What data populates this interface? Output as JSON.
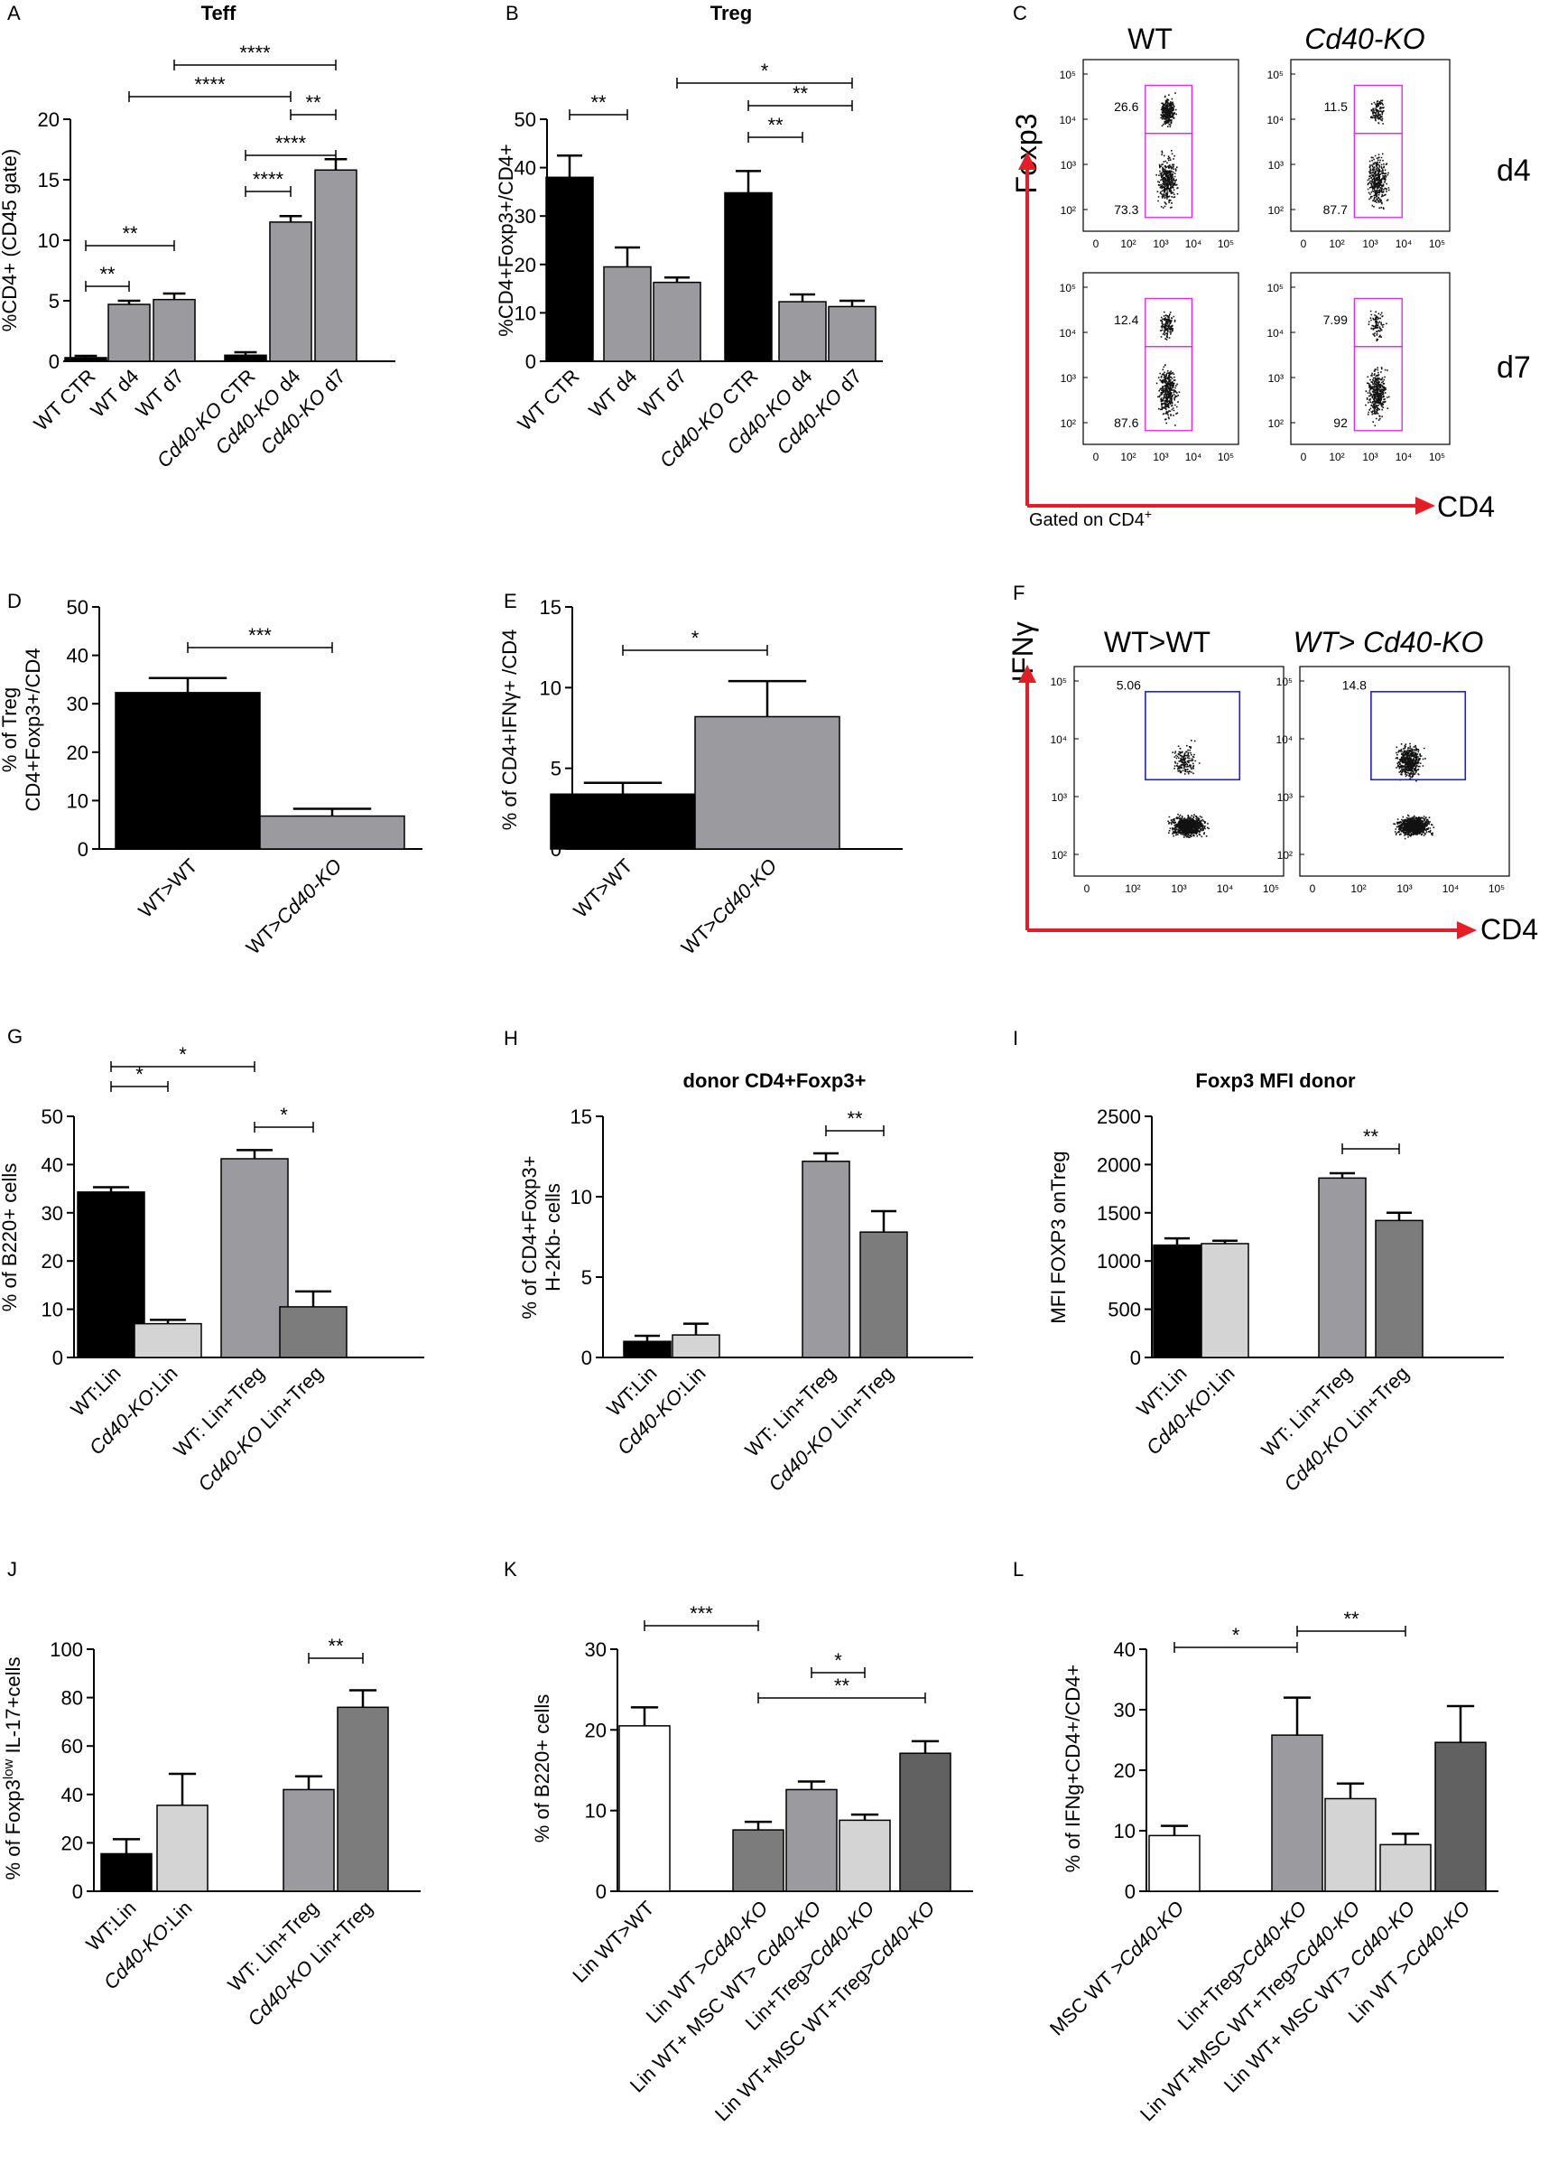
{
  "colors": {
    "black": "#000000",
    "mid": "#9a9a9f",
    "light": "#d4d4d4",
    "dark": "#7c7c7c",
    "darker": "#616161",
    "white": "#ffffff",
    "gate_magenta": "#e02ce8",
    "gate_blue": "#1c1ce8",
    "arrow_red": "#e21e26"
  },
  "chart_data": [
    {
      "id": "A",
      "type": "bar",
      "label": "A",
      "title": "Teff",
      "ylabel": "%CD4+ (CD45 gate)",
      "ylim": [
        0,
        20
      ],
      "yticks": [
        0,
        5,
        10,
        15,
        20
      ],
      "categories": [
        "WT CTR",
        "WT d4",
        "WT d7",
        "Cd40-KO CTR",
        "Cd40-KO d4",
        "Cd40-KO d7"
      ],
      "values": [
        0.3,
        4.7,
        5.1,
        0.5,
        11.5,
        15.8
      ],
      "errors": [
        0.15,
        0.3,
        0.5,
        0.25,
        0.5,
        0.9
      ],
      "colors": [
        "black",
        "mid",
        "mid",
        "black",
        "mid",
        "mid"
      ],
      "sig": [
        {
          "a": 0,
          "b": 1,
          "text": "**"
        },
        {
          "a": 0,
          "b": 2,
          "text": "**"
        },
        {
          "a": 3,
          "b": 4,
          "text": "****"
        },
        {
          "a": 3,
          "b": 5,
          "text": "****"
        },
        {
          "a": 4,
          "b": 5,
          "text": "**"
        },
        {
          "a": 1,
          "b": 4,
          "text": "****"
        },
        {
          "a": 2,
          "b": 5,
          "text": "****"
        }
      ]
    },
    {
      "id": "B",
      "type": "bar",
      "label": "B",
      "title": "Treg",
      "ylabel": "%CD4+Foxp3+/CD4+",
      "ylim": [
        0,
        50
      ],
      "yticks": [
        0,
        10,
        20,
        30,
        40,
        50
      ],
      "categories": [
        "WT CTR",
        "WT d4",
        "WT d7",
        "Cd40-KO CTR",
        "Cd40-KO d4",
        "Cd40-KO d7"
      ],
      "values": [
        38,
        19.5,
        16.3,
        34.8,
        12.3,
        11.3
      ],
      "errors": [
        4.5,
        4,
        1,
        4.5,
        1.5,
        1.2
      ],
      "colors": [
        "black",
        "mid",
        "mid",
        "black",
        "mid",
        "mid"
      ],
      "sig": [
        {
          "a": 0,
          "b": 1,
          "text": "**"
        },
        {
          "a": 3,
          "b": 4,
          "text": "**"
        },
        {
          "a": 3,
          "b": 5,
          "text": "**"
        },
        {
          "a": 2,
          "b": 5,
          "text": "*"
        }
      ]
    },
    {
      "id": "D",
      "type": "bar",
      "label": "D",
      "title": "",
      "ylabel": "% of Treg\nCD4+Foxp3+/CD4",
      "ylim": [
        0,
        50
      ],
      "yticks": [
        0,
        10,
        20,
        30,
        40,
        50
      ],
      "categories": [
        "WT>WT",
        "WT>Cd40-KO"
      ],
      "values": [
        32.3,
        6.8
      ],
      "errors": [
        3,
        1.5
      ],
      "colors": [
        "black",
        "mid"
      ],
      "sig": [
        {
          "a": 0,
          "b": 1,
          "text": "***"
        }
      ]
    },
    {
      "id": "E",
      "type": "bar",
      "label": "E",
      "title": "",
      "ylabel": "% of CD4+IFNγ+ /CD4",
      "ylim": [
        0,
        15
      ],
      "yticks": [
        0,
        5,
        10,
        15
      ],
      "categories": [
        "WT>WT",
        "WT>Cd40-KO"
      ],
      "values": [
        3.4,
        8.2
      ],
      "errors": [
        0.7,
        2.2
      ],
      "colors": [
        "black",
        "mid"
      ],
      "sig": [
        {
          "a": 0,
          "b": 1,
          "text": "*"
        }
      ]
    },
    {
      "id": "G",
      "type": "bar",
      "label": "G",
      "title": "",
      "ylabel": "% of B220+ cells",
      "ylim": [
        0,
        50
      ],
      "yticks": [
        0,
        10,
        20,
        30,
        40,
        50
      ],
      "categories": [
        "WT:Lin",
        "Cd40-KO:Lin",
        "WT: Lin+Treg",
        "Cd40-KO Lin+Treg"
      ],
      "values": [
        34.3,
        7,
        41.2,
        10.5
      ],
      "errors": [
        1,
        0.8,
        1.8,
        3.2
      ],
      "colors": [
        "black",
        "light",
        "mid",
        "dark"
      ],
      "sig": [
        {
          "a": 0,
          "b": 1,
          "text": "*"
        },
        {
          "a": 2,
          "b": 3,
          "text": "*"
        },
        {
          "a": 0,
          "b": 2,
          "text": "*"
        }
      ]
    },
    {
      "id": "H",
      "type": "bar",
      "label": "H",
      "title": "donor CD4+Foxp3+",
      "ylabel": "% of CD4+Foxp3+\nH-2Kb- cells",
      "ylim": [
        0,
        15
      ],
      "yticks": [
        0,
        5,
        10,
        15
      ],
      "categories": [
        "WT:Lin",
        "Cd40-KO:Lin",
        "WT: Lin+Treg",
        "Cd40-KO Lin+Treg"
      ],
      "values": [
        1,
        1.4,
        12.2,
        7.8
      ],
      "errors": [
        0.35,
        0.7,
        0.5,
        1.3
      ],
      "colors": [
        "black",
        "light",
        "mid",
        "dark"
      ],
      "sig": [
        {
          "a": 2,
          "b": 3,
          "text": "**"
        }
      ]
    },
    {
      "id": "I",
      "type": "bar",
      "label": "I",
      "title": "Foxp3 MFI donor",
      "ylabel": "MFI FOXP3 onTreg",
      "ylim": [
        0,
        2500
      ],
      "yticks": [
        0,
        500,
        1000,
        1500,
        2000,
        2500
      ],
      "categories": [
        "WT:Lin",
        "Cd40-KO:Lin",
        "WT: Lin+Treg",
        "Cd40-KO Lin+Treg"
      ],
      "values": [
        1165,
        1180,
        1860,
        1420
      ],
      "errors": [
        70,
        30,
        50,
        80
      ],
      "colors": [
        "black",
        "light",
        "mid",
        "dark"
      ],
      "sig": [
        {
          "a": 2,
          "b": 3,
          "text": "**"
        }
      ]
    },
    {
      "id": "J",
      "type": "bar",
      "label": "J",
      "title": "",
      "ylabel": "% of Foxp3low IL-17+cells",
      "ylim": [
        0,
        100
      ],
      "yticks": [
        0,
        20,
        40,
        60,
        80,
        100
      ],
      "categories": [
        "WT:Lin",
        "Cd40-KO:Lin",
        "WT: Lin+Treg",
        "Cd40-KO Lin+Treg"
      ],
      "values": [
        15.5,
        35.5,
        42,
        76
      ],
      "errors": [
        6,
        13,
        5.5,
        7
      ],
      "colors": [
        "black",
        "light",
        "mid",
        "dark"
      ],
      "sig": [
        {
          "a": 2,
          "b": 3,
          "text": "**"
        }
      ]
    },
    {
      "id": "K",
      "type": "bar",
      "label": "K",
      "title": "",
      "ylabel": "% of B220+ cells",
      "ylim": [
        0,
        30
      ],
      "yticks": [
        0,
        10,
        20,
        30
      ],
      "categories": [
        "Lin WT>WT",
        "Lin WT >Cd40-KO",
        "Lin WT+ MSC WT> Cd40-KO",
        "Lin+Treg>Cd40-KO",
        "Lin WT+MSC WT+Treg>Cd40-KO"
      ],
      "values": [
        20.5,
        7.6,
        12.6,
        8.8,
        17.1
      ],
      "errors": [
        2.3,
        1,
        1,
        0.7,
        1.5
      ],
      "colors": [
        "white",
        "dark",
        "mid",
        "light",
        "darker"
      ],
      "sig": [
        {
          "a": 0,
          "b": 1,
          "text": "***"
        },
        {
          "a": 1,
          "b": 4,
          "text": "**"
        },
        {
          "a": 2,
          "b": 3,
          "text": "*"
        }
      ]
    },
    {
      "id": "L",
      "type": "bar",
      "label": "L",
      "title": "",
      "ylabel": "% of IFNg+CD4+/CD4+",
      "ylim": [
        0,
        40
      ],
      "yticks": [
        0,
        10,
        20,
        30,
        40
      ],
      "categories": [
        "MSC WT >Cd40-KO",
        "Lin+Treg>Cd40-KO",
        "Lin WT+MSC WT+Treg>Cd40-KO",
        "Lin WT+ MSC WT> Cd40-KO",
        "Lin WT >Cd40-KO"
      ],
      "values": [
        9.2,
        25.8,
        15.3,
        7.7,
        24.6
      ],
      "errors": [
        1.6,
        6.2,
        2.5,
        1.8,
        6
      ],
      "colors": [
        "white",
        "mid",
        "light",
        "light",
        "darker"
      ],
      "sig": [
        {
          "a": 0,
          "b": 1,
          "text": "*"
        },
        {
          "a": 1,
          "b": 3,
          "text": "**"
        }
      ]
    }
  ],
  "flow_c": {
    "label": "C",
    "col_titles": [
      "WT",
      "Cd40-KO"
    ],
    "row_labels": [
      "d4",
      "d7"
    ],
    "y_axis": "Foxp3",
    "x_axis": "CD4",
    "gated": "Gated on CD4",
    "gated_sup": "+",
    "yticks": [
      "10⁵",
      "10⁴",
      "10³",
      "10²"
    ],
    "xticks": [
      "0",
      "10²",
      "10³",
      "10⁴",
      "10⁵"
    ],
    "panels": [
      {
        "upper": "26.6",
        "lower": "73.3"
      },
      {
        "upper": "11.5",
        "lower": "87.7"
      },
      {
        "upper": "12.4",
        "lower": "87.6"
      },
      {
        "upper": "7.99",
        "lower": "92"
      }
    ]
  },
  "flow_f": {
    "label": "F",
    "col_titles": [
      "WT>WT",
      "WT> Cd40-KO"
    ],
    "y_axis": "IFNγ",
    "x_axis": "CD4",
    "yticks": [
      "10⁵",
      "10⁴",
      "10³",
      "10²"
    ],
    "xticks": [
      "0",
      "10²",
      "10³",
      "10⁴",
      "10⁵"
    ],
    "panels": [
      {
        "value": "5.06"
      },
      {
        "value": "14.8"
      }
    ]
  }
}
